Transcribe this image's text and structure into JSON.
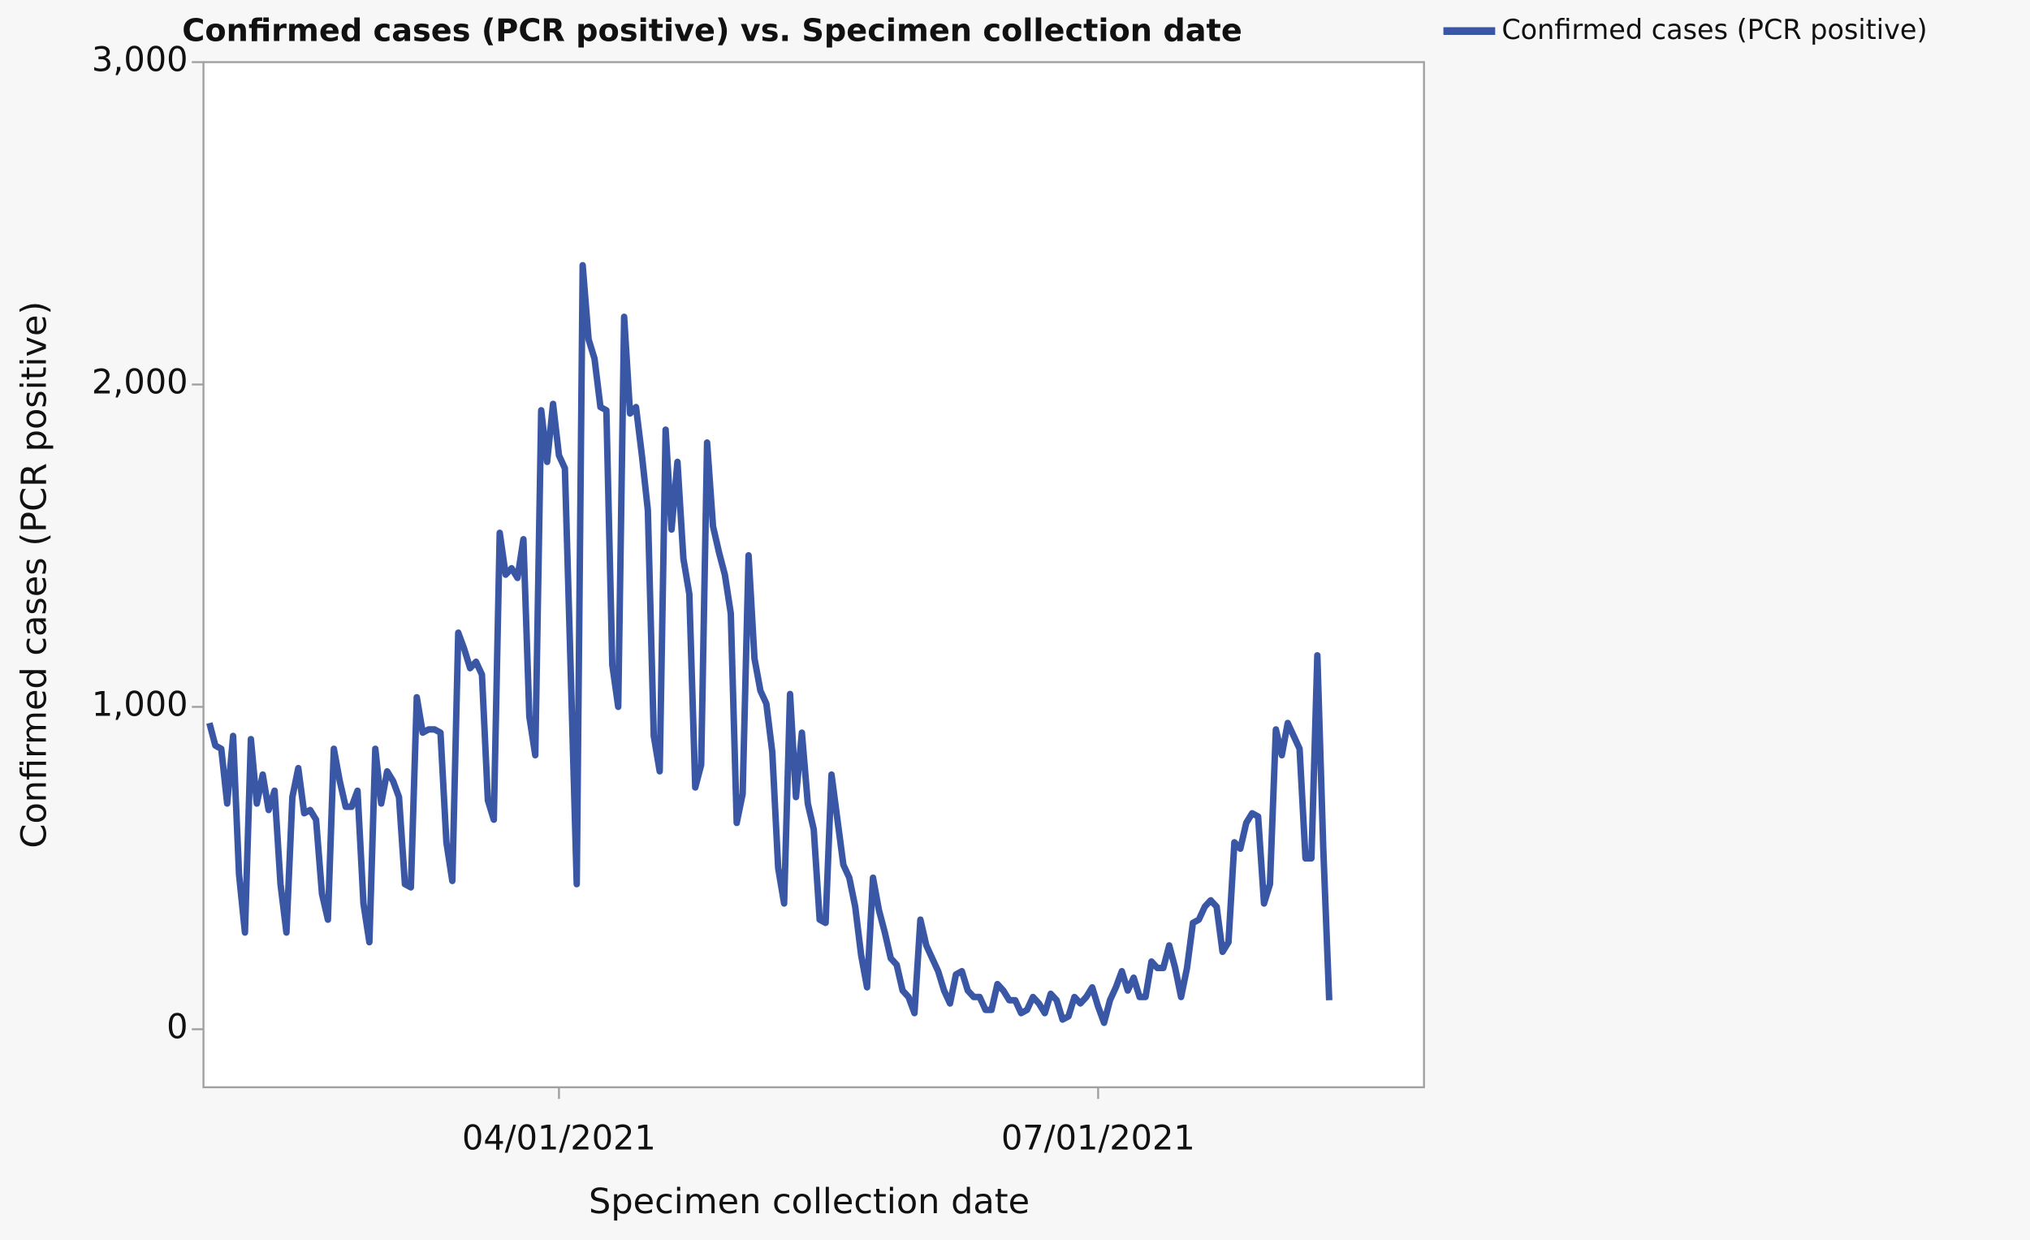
{
  "chart_data": {
    "type": "line",
    "title": "Confirmed cases (PCR positive) vs. Specimen collection date",
    "x_label": "Specimen collection date",
    "y_label": "Confirmed cases (PCR positive)",
    "x": [
      "2021-02-01",
      "2021-02-02",
      "2021-02-03",
      "2021-02-04",
      "2021-02-05",
      "2021-02-06",
      "2021-02-07",
      "2021-02-08",
      "2021-02-09",
      "2021-02-10",
      "2021-02-11",
      "2021-02-12",
      "2021-02-13",
      "2021-02-14",
      "2021-02-15",
      "2021-02-16",
      "2021-02-17",
      "2021-02-18",
      "2021-02-19",
      "2021-02-20",
      "2021-02-21",
      "2021-02-22",
      "2021-02-23",
      "2021-02-24",
      "2021-02-25",
      "2021-02-26",
      "2021-02-27",
      "2021-02-28",
      "2021-03-01",
      "2021-03-02",
      "2021-03-03",
      "2021-03-04",
      "2021-03-05",
      "2021-03-06",
      "2021-03-07",
      "2021-03-08",
      "2021-03-09",
      "2021-03-10",
      "2021-03-11",
      "2021-03-12",
      "2021-03-13",
      "2021-03-14",
      "2021-03-15",
      "2021-03-16",
      "2021-03-17",
      "2021-03-18",
      "2021-03-19",
      "2021-03-20",
      "2021-03-21",
      "2021-03-22",
      "2021-03-23",
      "2021-03-24",
      "2021-03-25",
      "2021-03-26",
      "2021-03-27",
      "2021-03-28",
      "2021-03-29",
      "2021-03-30",
      "2021-03-31",
      "2021-04-01",
      "2021-04-02",
      "2021-04-03",
      "2021-04-04",
      "2021-04-05",
      "2021-04-06",
      "2021-04-07",
      "2021-04-08",
      "2021-04-09",
      "2021-04-10",
      "2021-04-11",
      "2021-04-12",
      "2021-04-13",
      "2021-04-14",
      "2021-04-15",
      "2021-04-16",
      "2021-04-17",
      "2021-04-18",
      "2021-04-19",
      "2021-04-20",
      "2021-04-21",
      "2021-04-22",
      "2021-04-23",
      "2021-04-24",
      "2021-04-25",
      "2021-04-26",
      "2021-04-27",
      "2021-04-28",
      "2021-04-29",
      "2021-04-30",
      "2021-05-01",
      "2021-05-02",
      "2021-05-03",
      "2021-05-04",
      "2021-05-05",
      "2021-05-06",
      "2021-05-07",
      "2021-05-08",
      "2021-05-09",
      "2021-05-10",
      "2021-05-11",
      "2021-05-12",
      "2021-05-13",
      "2021-05-14",
      "2021-05-15",
      "2021-05-16",
      "2021-05-17",
      "2021-05-18",
      "2021-05-19",
      "2021-05-20",
      "2021-05-21",
      "2021-05-22",
      "2021-05-23",
      "2021-05-24",
      "2021-05-25",
      "2021-05-26",
      "2021-05-27",
      "2021-05-28",
      "2021-05-29",
      "2021-05-30",
      "2021-05-31",
      "2021-06-01",
      "2021-06-02",
      "2021-06-03",
      "2021-06-04",
      "2021-06-05",
      "2021-06-06",
      "2021-06-07",
      "2021-06-08",
      "2021-06-09",
      "2021-06-10",
      "2021-06-11",
      "2021-06-12",
      "2021-06-13",
      "2021-06-14",
      "2021-06-15",
      "2021-06-16",
      "2021-06-17",
      "2021-06-18",
      "2021-06-19",
      "2021-06-20",
      "2021-06-21",
      "2021-06-22",
      "2021-06-23",
      "2021-06-24",
      "2021-06-25",
      "2021-06-26",
      "2021-06-27",
      "2021-06-28",
      "2021-06-29",
      "2021-06-30",
      "2021-07-01",
      "2021-07-02",
      "2021-07-03",
      "2021-07-04",
      "2021-07-05",
      "2021-07-06",
      "2021-07-07",
      "2021-07-08",
      "2021-07-09",
      "2021-07-10",
      "2021-07-11",
      "2021-07-12",
      "2021-07-13",
      "2021-07-14",
      "2021-07-15",
      "2021-07-16",
      "2021-07-17",
      "2021-07-18",
      "2021-07-19",
      "2021-07-20",
      "2021-07-21",
      "2021-07-22",
      "2021-07-23",
      "2021-07-24",
      "2021-07-25",
      "2021-07-26",
      "2021-07-27",
      "2021-07-28",
      "2021-07-29",
      "2021-07-30",
      "2021-07-31",
      "2021-08-01",
      "2021-08-02",
      "2021-08-03",
      "2021-08-04",
      "2021-08-05",
      "2021-08-06",
      "2021-08-07",
      "2021-08-08",
      "2021-08-09"
    ],
    "series": [
      {
        "name": "Confirmed cases (PCR positive)",
        "color": "#3a57a6",
        "values": [
          950,
          880,
          870,
          700,
          910,
          480,
          300,
          900,
          700,
          790,
          680,
          740,
          450,
          300,
          720,
          810,
          670,
          680,
          650,
          420,
          340,
          870,
          770,
          690,
          690,
          740,
          390,
          270,
          870,
          700,
          800,
          770,
          720,
          450,
          440,
          1030,
          920,
          930,
          930,
          920,
          580,
          460,
          1230,
          1180,
          1120,
          1140,
          1100,
          710,
          650,
          1540,
          1410,
          1430,
          1400,
          1520,
          970,
          850,
          1920,
          1760,
          1940,
          1780,
          1740,
          1100,
          450,
          2370,
          2140,
          2080,
          1930,
          1920,
          1130,
          1000,
          2210,
          1910,
          1930,
          1780,
          1610,
          910,
          800,
          1860,
          1550,
          1760,
          1460,
          1350,
          750,
          820,
          1820,
          1560,
          1480,
          1410,
          1290,
          640,
          730,
          1470,
          1150,
          1050,
          1010,
          860,
          500,
          390,
          1040,
          720,
          920,
          700,
          620,
          340,
          330,
          790,
          650,
          510,
          470,
          380,
          230,
          130,
          470,
          370,
          300,
          220,
          200,
          120,
          100,
          50,
          340,
          260,
          220,
          180,
          120,
          80,
          170,
          180,
          120,
          100,
          100,
          60,
          60,
          140,
          120,
          90,
          90,
          50,
          60,
          100,
          80,
          50,
          110,
          90,
          30,
          40,
          100,
          80,
          100,
          130,
          70,
          20,
          90,
          130,
          180,
          120,
          160,
          100,
          100,
          210,
          190,
          190,
          260,
          190,
          100,
          190,
          330,
          340,
          380,
          400,
          380,
          240,
          270,
          580,
          560,
          640,
          670,
          660,
          390,
          450,
          930,
          850,
          950,
          910,
          870,
          530,
          530,
          1160,
          560,
          90
        ]
      }
    ],
    "xlim": [
      "2021-01-31",
      "2021-08-25"
    ],
    "xticks": [
      {
        "value": "2021-04-01",
        "label": "04/01/2021"
      },
      {
        "value": "2021-07-01",
        "label": "07/01/2021"
      }
    ],
    "ylim": [
      -180,
      3000
    ],
    "yticks": [
      0,
      {
        "value": 1000,
        "label": "1,000"
      },
      {
        "value": 2000,
        "label": "2,000"
      },
      {
        "value": 3000,
        "label": "3,000"
      }
    ],
    "grid": false,
    "legend": "top-right"
  }
}
